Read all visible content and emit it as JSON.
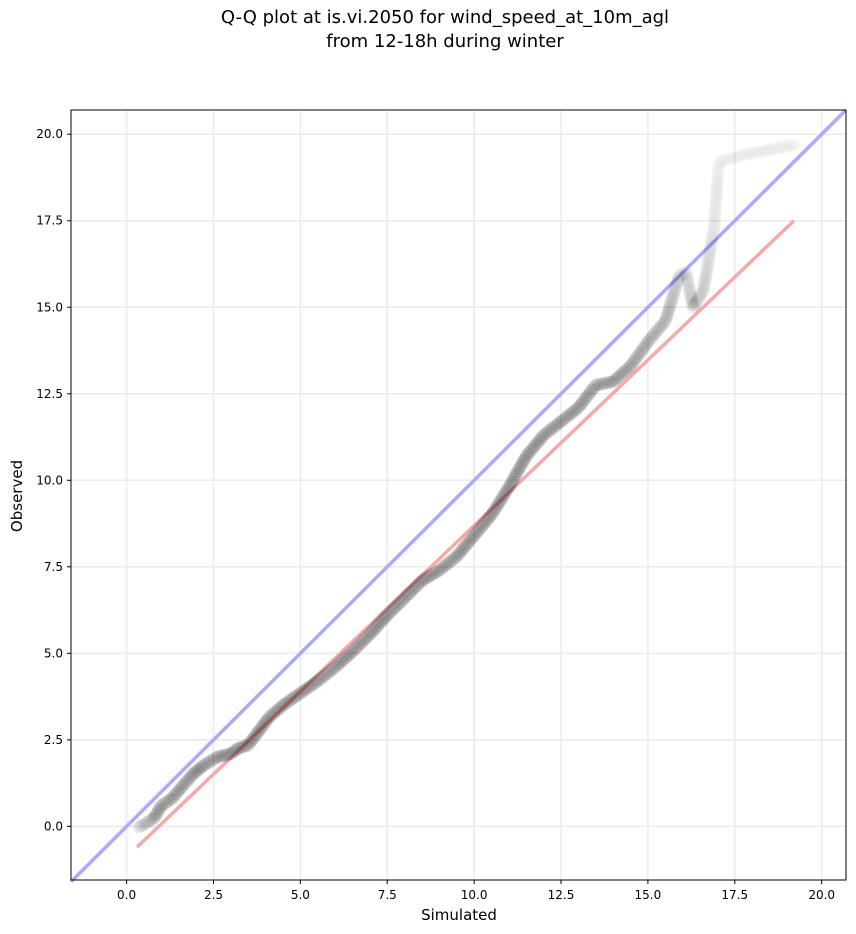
{
  "chart_data": {
    "type": "scatter",
    "title_lines": [
      "Q-Q plot at is.vi.2050 for wind_speed_at_10m_agl",
      "from 12-18h during winter"
    ],
    "xlabel": "Simulated",
    "ylabel": "Observed",
    "xlim": [
      -1.6,
      20.7
    ],
    "ylim": [
      -1.55,
      20.7
    ],
    "xticks": [
      0.0,
      2.5,
      5.0,
      7.5,
      10.0,
      12.5,
      15.0,
      17.5,
      20.0
    ],
    "yticks": [
      0.0,
      2.5,
      5.0,
      7.5,
      10.0,
      12.5,
      15.0,
      17.5,
      20.0
    ],
    "xtick_labels": [
      "0.0",
      "2.5",
      "5.0",
      "7.5",
      "10.0",
      "12.5",
      "15.0",
      "17.5",
      "20.0"
    ],
    "ytick_labels": [
      "0.0",
      "2.5",
      "5.0",
      "7.5",
      "10.0",
      "12.5",
      "15.0",
      "17.5",
      "20.0"
    ],
    "grid": true,
    "reference_lines": [
      {
        "kind": "one-to-one",
        "color": "#aaaaff",
        "x": [
          -1.6,
          20.7
        ],
        "y": [
          -1.6,
          20.7
        ]
      },
      {
        "kind": "fit",
        "color": "#f5aaaa",
        "x": [
          0.3,
          19.2
        ],
        "y": [
          -0.6,
          17.5
        ]
      }
    ],
    "colors": {
      "points": "#000000",
      "one_to_one": "#aaaaff",
      "fit": "#f5aaaa",
      "grid": "#ebebeb"
    },
    "series": [
      {
        "x": [
          0.35,
          0.5,
          0.8,
          1.0,
          1.3,
          1.6,
          1.9,
          2.2,
          2.6,
          3.0,
          3.2,
          3.5,
          3.8,
          4.1,
          4.5,
          5.0,
          5.5,
          6.0,
          6.5,
          7.0,
          7.5,
          8.0,
          8.5,
          9.0,
          9.5,
          10.0,
          10.5,
          11.0,
          11.5,
          12.0,
          12.5,
          13.0,
          13.5,
          14.0,
          14.5,
          15.0,
          15.5,
          15.9,
          16.1,
          16.3,
          16.6,
          16.85,
          16.9,
          16.95,
          17.05,
          17.75,
          19.25
        ],
        "y": [
          -0.02,
          0.05,
          0.25,
          0.6,
          0.8,
          1.15,
          1.5,
          1.75,
          2.0,
          2.1,
          2.25,
          2.35,
          2.75,
          3.15,
          3.5,
          3.85,
          4.2,
          4.6,
          5.05,
          5.55,
          6.1,
          6.6,
          7.1,
          7.4,
          7.8,
          8.4,
          9.0,
          9.8,
          10.7,
          11.3,
          11.7,
          12.1,
          12.75,
          12.85,
          13.3,
          14.0,
          14.6,
          15.9,
          16.0,
          15.0,
          15.5,
          17.0,
          17.25,
          17.9,
          19.2,
          19.4,
          19.7
        ],
        "alpha": [
          0.35,
          0.35,
          0.55,
          0.55,
          0.6,
          0.6,
          0.6,
          0.6,
          0.6,
          0.6,
          0.6,
          0.6,
          0.6,
          0.6,
          0.6,
          0.6,
          0.6,
          0.6,
          0.6,
          0.6,
          0.6,
          0.6,
          0.6,
          0.6,
          0.6,
          0.6,
          0.6,
          0.6,
          0.6,
          0.6,
          0.6,
          0.6,
          0.55,
          0.55,
          0.5,
          0.45,
          0.4,
          0.25,
          0.2,
          0.3,
          0.25,
          0.15,
          0.12,
          0.12,
          0.1,
          0.1,
          0.1
        ]
      }
    ]
  }
}
